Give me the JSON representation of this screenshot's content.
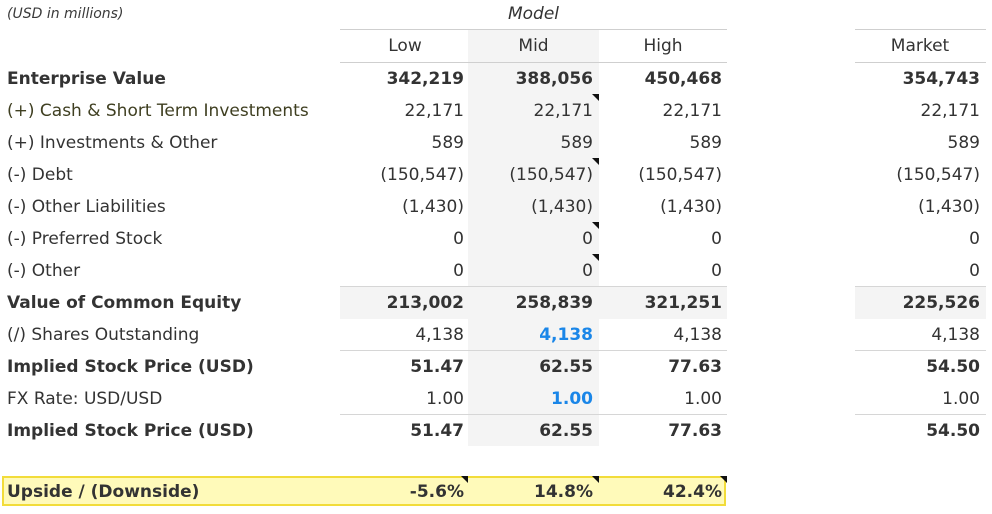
{
  "caption": "(USD in millions)",
  "model_title": "Model",
  "columns": {
    "low": "Low",
    "mid": "Mid",
    "high": "High",
    "market": "Market"
  },
  "rows": [
    {
      "label": "Enterprise Value",
      "low": "342,219",
      "mid": "388,056",
      "high": "450,468",
      "market": "354,743"
    },
    {
      "label": "(+) Cash & Short Term Investments",
      "low": "22,171",
      "mid": "22,171",
      "high": "22,171",
      "market": "22,171"
    },
    {
      "label": "(+) Investments & Other",
      "low": "589",
      "mid": "589",
      "high": "589",
      "market": "589"
    },
    {
      "label": "(-) Debt",
      "low": "(150,547)",
      "mid": "(150,547)",
      "high": "(150,547)",
      "market": "(150,547)"
    },
    {
      "label": "(-) Other Liabilities",
      "low": "(1,430)",
      "mid": "(1,430)",
      "high": "(1,430)",
      "market": "(1,430)"
    },
    {
      "label": "(-) Preferred Stock",
      "low": "0",
      "mid": "0",
      "high": "0",
      "market": "0"
    },
    {
      "label": "(-) Other",
      "low": "0",
      "mid": "0",
      "high": "0",
      "market": "0"
    },
    {
      "label": "Value of Common Equity",
      "low": "213,002",
      "mid": "258,839",
      "high": "321,251",
      "market": "225,526"
    },
    {
      "label": "(/) Shares Outstanding",
      "low": "4,138",
      "mid": "4,138",
      "high": "4,138",
      "market": "4,138"
    },
    {
      "label": "Implied Stock Price (USD)",
      "low": "51.47",
      "mid": "62.55",
      "high": "77.63",
      "market": "54.50"
    },
    {
      "label": "FX Rate: USD/USD",
      "low": "1.00",
      "mid": "1.00",
      "high": "1.00",
      "market": "1.00"
    },
    {
      "label": "Implied Stock Price (USD)",
      "low": "51.47",
      "mid": "62.55",
      "high": "77.63",
      "market": "54.50"
    }
  ],
  "upside": {
    "label": "Upside / (Downside)",
    "low": "-5.6%",
    "mid": "14.8%",
    "high": "42.4%"
  },
  "colors": {
    "input_blue": "#1a86e8",
    "highlight_fill": "#fffaba",
    "highlight_border": "#f2dc3a"
  }
}
